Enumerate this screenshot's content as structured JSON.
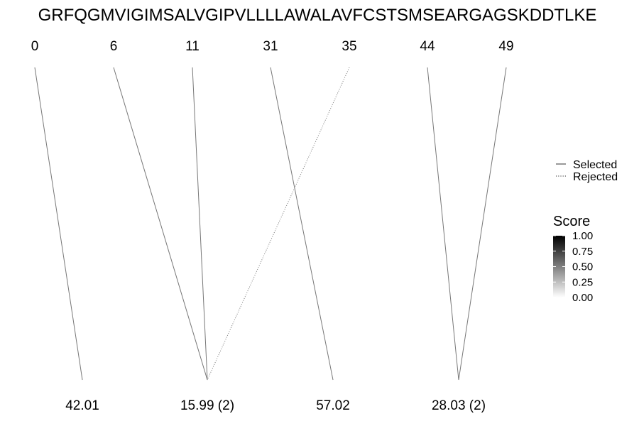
{
  "sequence": "GRFQGMVIGIMSALVGIPVLLLLAWALAVFCSTSMSEARGAGSKDDTLKE",
  "top_positions": [
    {
      "label": "0",
      "color": "#777777"
    },
    {
      "label": "6",
      "color": "#777777"
    },
    {
      "label": "11",
      "color": "#777777"
    },
    {
      "label": "31",
      "color": "#777777"
    },
    {
      "label": "35",
      "color": "#777777"
    },
    {
      "label": "44",
      "color": "#777777"
    },
    {
      "label": "49",
      "color": "#777777"
    }
  ],
  "bottom_labels": [
    {
      "label": "42.01"
    },
    {
      "label": "15.99 (2)"
    },
    {
      "label": "57.02"
    },
    {
      "label": "28.03 (2)"
    }
  ],
  "links": [
    {
      "from": 0,
      "to": 0,
      "type": "selected"
    },
    {
      "from": 1,
      "to": 1,
      "type": "selected"
    },
    {
      "from": 2,
      "to": 1,
      "type": "selected"
    },
    {
      "from": 3,
      "to": 2,
      "type": "selected"
    },
    {
      "from": 4,
      "to": 1,
      "type": "rejected"
    },
    {
      "from": 5,
      "to": 3,
      "type": "selected"
    },
    {
      "from": 6,
      "to": 3,
      "type": "selected"
    }
  ],
  "legend": {
    "selected": "Selected",
    "rejected": "Rejected"
  },
  "score_legend": {
    "title": "Score",
    "ticks": [
      "1.00",
      "0.75",
      "0.50",
      "0.25",
      "0.00"
    ],
    "color_high": "#000000",
    "color_low": "#ffffff"
  }
}
